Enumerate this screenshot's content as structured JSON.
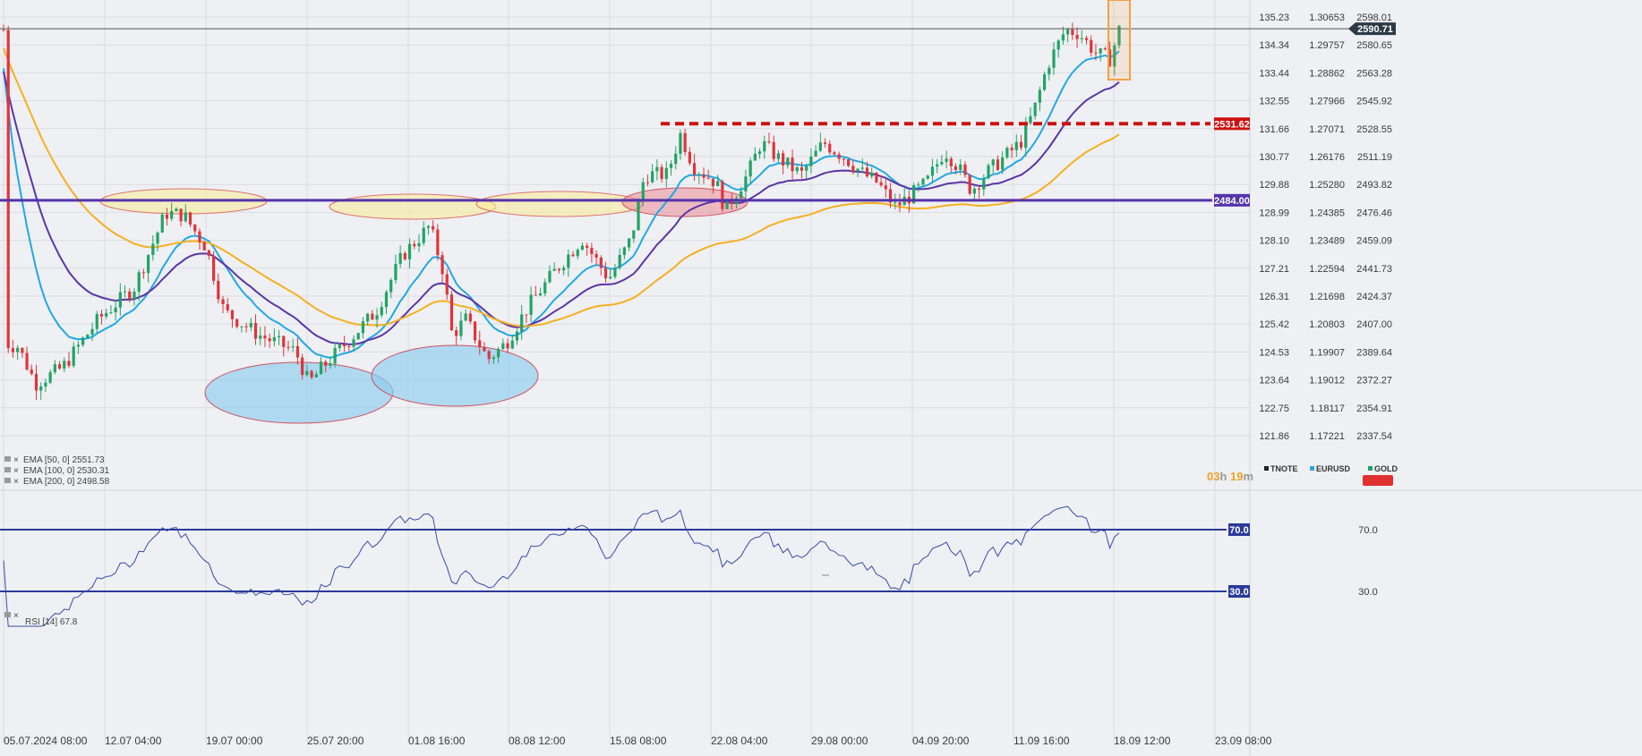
{
  "chart_data": {
    "type": "candlestick",
    "symbols": {
      "items": [
        "TNOTE",
        "EURUSD",
        "GOLD"
      ],
      "colors": [
        "#222222",
        "#29a8e0",
        "#21a366"
      ]
    },
    "x_labels": [
      "05.07.2024  08:00",
      "12.07  04:00",
      "19.07  00:00",
      "25.07  20:00",
      "01.08  16:00",
      "08.08  12:00",
      "15.08  08:00",
      "22.08  04:00",
      "29.08  00:00",
      "04.09  20:00",
      "11.09  16:00",
      "18.09  12:00",
      "23.09  08:00"
    ],
    "axis_tnote": [
      "135.23",
      "134.34",
      "133.44",
      "132.55",
      "131.66",
      "130.77",
      "129.88",
      "128.99",
      "128.10",
      "127.21",
      "126.31",
      "125.42",
      "124.53",
      "123.64",
      "122.75",
      "121.86"
    ],
    "axis_eurusd": [
      "1.30653",
      "1.29757",
      "1.28862",
      "1.27966",
      "1.27071",
      "1.26176",
      "1.25280",
      "1.24385",
      "1.23489",
      "1.22594",
      "1.21698",
      "1.20803",
      "1.19907",
      "1.19012",
      "1.18117",
      "1.17221"
    ],
    "axis_gold": [
      "2598.01",
      "2580.65",
      "2563.28",
      "2545.92",
      "2528.55",
      "2511.19",
      "2493.82",
      "2476.46",
      "2459.09",
      "2441.73",
      "2424.37",
      "2407.00",
      "2389.64",
      "2372.27",
      "2354.91",
      "2337.54"
    ],
    "ylim": [
      2337.54,
      2598.01
    ],
    "current_price": "2590.71",
    "current_value": 2590.71,
    "levels": [
      {
        "label": "2531.62",
        "value": 2531.62,
        "color": "#cc1111",
        "style": "dashed"
      },
      {
        "label": "2484.00",
        "value": 2484.0,
        "color": "#5533aa",
        "style": "solid"
      }
    ],
    "series": [
      {
        "label": "EMA [50, 0] 2551.73",
        "color": "#22a8e6",
        "last": 2551.73
      },
      {
        "label": "EMA [100, 0] 2530.31",
        "color": "#5b35a8",
        "last": 2530.31
      },
      {
        "label": "EMA [200, 0] 2498.58",
        "color": "#f5b021",
        "last": 2498.58
      }
    ],
    "rsi": {
      "label": "RSI [14] 67.8",
      "last": 67.8,
      "levels": [
        {
          "label": "70.0",
          "value": 70
        },
        {
          "label": "30.0",
          "value": 30
        }
      ],
      "axis": [
        "70.0",
        "30.0"
      ]
    },
    "countdown": {
      "hours": "03",
      "h": "h",
      "minutes": "19",
      "m": "m"
    }
  }
}
